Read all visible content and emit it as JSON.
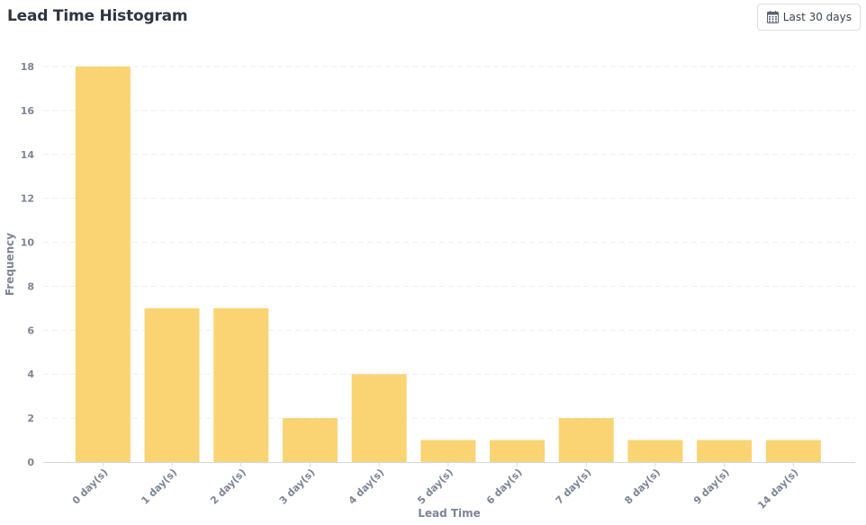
{
  "header": {
    "title": "Lead Time Histogram",
    "range_label": "Last 30 days",
    "range_icon": "calendar-icon"
  },
  "colors": {
    "bar": "#fad473",
    "grid": "#eceef1",
    "axis": "#d4d8de",
    "text": "#7c8594"
  },
  "chart_data": {
    "type": "bar",
    "title": "Lead Time Histogram",
    "xlabel": "Lead Time",
    "ylabel": "Frequency",
    "categories": [
      "0 day(s)",
      "1 day(s)",
      "2 day(s)",
      "3 day(s)",
      "4 day(s)",
      "5 day(s)",
      "6 day(s)",
      "7 day(s)",
      "8 day(s)",
      "9 day(s)",
      "14 day(s)"
    ],
    "values": [
      18,
      7,
      7,
      2,
      4,
      1,
      1,
      2,
      1,
      1,
      1
    ],
    "ylim": [
      0,
      18
    ],
    "yticks": [
      0,
      2,
      4,
      6,
      8,
      10,
      12,
      14,
      16,
      18
    ],
    "grid": true,
    "legend": "none"
  }
}
